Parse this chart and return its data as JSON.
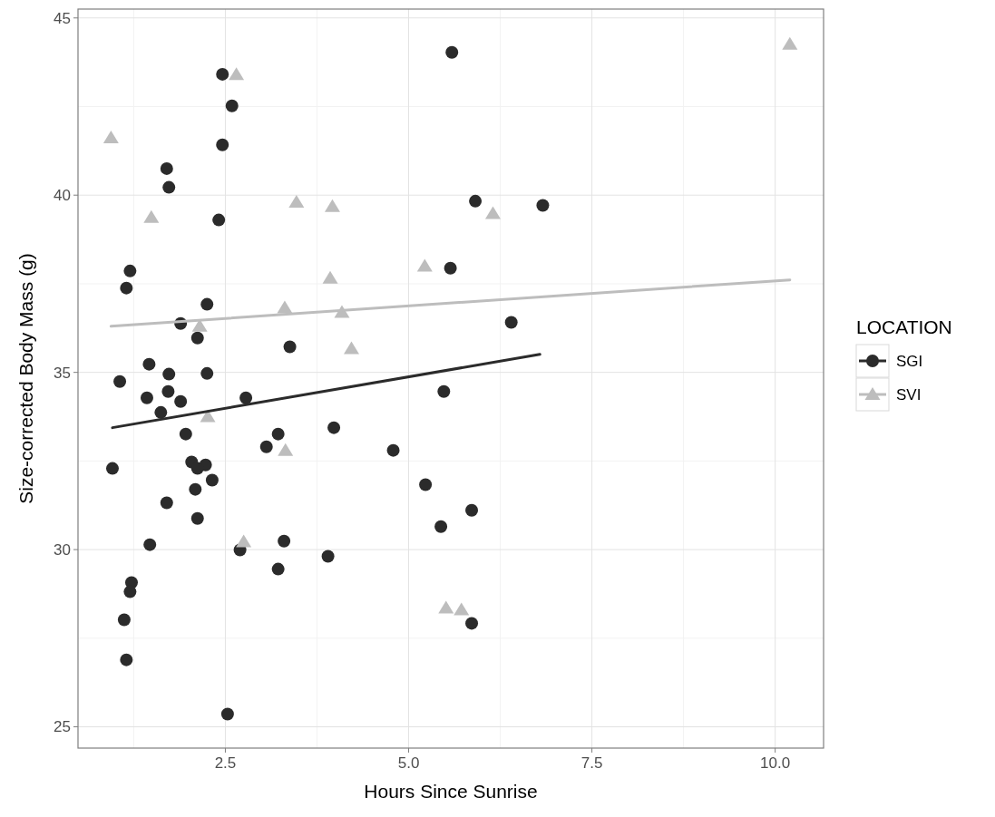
{
  "chart_data": {
    "type": "scatter",
    "xlabel": "Hours Since Sunrise",
    "ylabel": "Size-corrected Body Mass (g)",
    "legend_title": "LOCATION",
    "legend": "right",
    "grid": true,
    "xlim": [
      0.49,
      10.66
    ],
    "xticks": [
      {
        "value": 2.5,
        "label": "2.5"
      },
      {
        "value": 5,
        "label": "5.0"
      },
      {
        "value": 7.5,
        "label": "7.5"
      },
      {
        "value": 10,
        "label": "10.0"
      }
    ],
    "ylim": [
      24.4,
      45.25
    ],
    "yticks": [
      25,
      30,
      35,
      40,
      45
    ],
    "series": [
      {
        "name": "SGI",
        "marker": "circle",
        "color": "#2b2b2b",
        "x": [
          2.46,
          2.59,
          2.46,
          1.7,
          1.73,
          2.41,
          1.2,
          1.15,
          2.25,
          1.89,
          2.12,
          3.38,
          1.46,
          1.73,
          2.25,
          1.06,
          1.72,
          1.43,
          1.89,
          2.78,
          1.62,
          1.96,
          3.22,
          3.06,
          3.98,
          0.96,
          2.04,
          2.23,
          2.12,
          2.32,
          2.09,
          1.7,
          2.12,
          1.47,
          2.7,
          3.3,
          3.22,
          3.9,
          1.22,
          1.2,
          1.12,
          1.15,
          2.53,
          5.59,
          5.91,
          6.83,
          5.57,
          6.4,
          5.48,
          4.79,
          5.23,
          5.86,
          5.44,
          5.86
        ],
        "values": [
          43.41,
          42.52,
          41.42,
          40.75,
          40.22,
          39.3,
          37.86,
          37.38,
          36.92,
          36.38,
          35.97,
          35.72,
          35.23,
          34.95,
          34.97,
          34.74,
          34.46,
          34.28,
          34.18,
          34.28,
          33.87,
          33.26,
          33.26,
          32.9,
          33.44,
          32.29,
          32.47,
          32.39,
          32.29,
          31.96,
          31.7,
          31.32,
          30.88,
          30.14,
          29.99,
          30.24,
          29.45,
          29.81,
          29.07,
          28.81,
          28.02,
          26.89,
          25.36,
          44.03,
          39.83,
          39.71,
          37.94,
          36.41,
          34.46,
          32.8,
          31.83,
          31.11,
          30.65,
          27.92
        ]
      },
      {
        "name": "SVI",
        "marker": "triangle",
        "color": "#bdbdbd",
        "x": [
          2.65,
          0.94,
          1.49,
          3.47,
          3.96,
          3.93,
          3.31,
          4.09,
          4.22,
          2.15,
          2.26,
          3.32,
          2.75,
          10.2,
          6.15,
          5.22,
          5.51,
          5.72
        ],
        "values": [
          43.4,
          41.62,
          39.37,
          39.8,
          39.68,
          37.66,
          36.82,
          36.69,
          35.67,
          36.3,
          33.75,
          32.8,
          30.22,
          44.26,
          39.48,
          38.0,
          28.35,
          28.3
        ]
      },
      {
        "type": "line",
        "color": "#2b2b2b",
        "x": [
          0.96,
          6.79
        ],
        "values": [
          33.44,
          35.51
        ]
      },
      {
        "type": "line",
        "color": "#bdbdbd",
        "x": [
          0.94,
          10.2
        ],
        "values": [
          36.3,
          37.61
        ]
      }
    ]
  }
}
